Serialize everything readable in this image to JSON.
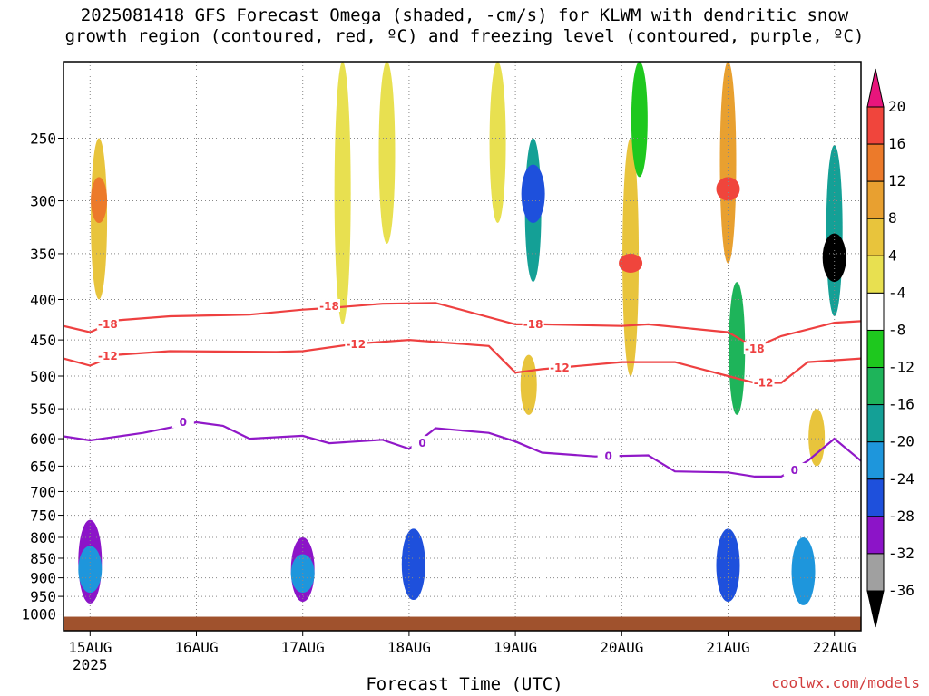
{
  "title": {
    "line1": "2025081418 GFS Forecast Omega (shaded, -cm/s) for KLWM with dendritic snow",
    "line2": "growth region (contoured, red, ºC) and freezing level (contoured, purple, ºC)"
  },
  "credit": "coolwx.com/models",
  "chart_data": {
    "type": "heatmap",
    "xlabel": "Forecast Time (UTC)",
    "ylabel": "",
    "x_unit": "hours since 2025-08-14 18Z",
    "xlim": [
      0,
      180
    ],
    "ylim": [
      1050,
      200
    ],
    "y_scale": "log",
    "x_ticks": [
      {
        "hour": 6,
        "label": "15AUG",
        "sublabel": "2025"
      },
      {
        "hour": 30,
        "label": "16AUG"
      },
      {
        "hour": 54,
        "label": "17AUG"
      },
      {
        "hour": 78,
        "label": "18AUG"
      },
      {
        "hour": 102,
        "label": "19AUG"
      },
      {
        "hour": 126,
        "label": "20AUG"
      },
      {
        "hour": 150,
        "label": "21AUG"
      },
      {
        "hour": 174,
        "label": "22AUG"
      }
    ],
    "y_ticks": [
      250,
      300,
      350,
      400,
      450,
      500,
      550,
      600,
      650,
      700,
      750,
      800,
      850,
      900,
      950,
      1000
    ],
    "grid": "dotted at each y tick and x tick",
    "colorbar": {
      "levels": [
        20,
        16,
        12,
        8,
        4,
        -4,
        -8,
        -12,
        -16,
        -20,
        -24,
        -28,
        -32,
        -36
      ],
      "colors": [
        "#e8157c",
        "#f0453c",
        "#ec7a2a",
        "#e8a030",
        "#e8c43c",
        "#e8e050",
        "#ffffff",
        "#1ec81e",
        "#1eb45a",
        "#14a096",
        "#1e96dc",
        "#1e50dc",
        "#8c14c8",
        "#a0a0a0",
        "#000000"
      ]
    },
    "series": [
      {
        "name": "-18",
        "color": "#ee4040",
        "points": [
          [
            0,
            432
          ],
          [
            6,
            440
          ],
          [
            12,
            425
          ],
          [
            24,
            420
          ],
          [
            42,
            418
          ],
          [
            54,
            412
          ],
          [
            60,
            410
          ],
          [
            72,
            405
          ],
          [
            84,
            404
          ],
          [
            102,
            430
          ],
          [
            108,
            430
          ],
          [
            126,
            432
          ],
          [
            132,
            430
          ],
          [
            150,
            440
          ],
          [
            156,
            460
          ],
          [
            162,
            445
          ],
          [
            174,
            428
          ],
          [
            180,
            426
          ]
        ]
      },
      {
        "name": "-12",
        "color": "#ee4040",
        "points": [
          [
            0,
            475
          ],
          [
            6,
            485
          ],
          [
            12,
            470
          ],
          [
            24,
            465
          ],
          [
            48,
            466
          ],
          [
            54,
            465
          ],
          [
            66,
            455
          ],
          [
            78,
            450
          ],
          [
            96,
            458
          ],
          [
            102,
            495
          ],
          [
            108,
            490
          ],
          [
            126,
            480
          ],
          [
            138,
            480
          ],
          [
            150,
            500
          ],
          [
            156,
            510
          ],
          [
            162,
            510
          ],
          [
            168,
            480
          ],
          [
            180,
            475
          ]
        ]
      },
      {
        "name": "0",
        "color": "#9018c8",
        "points": [
          [
            0,
            596
          ],
          [
            6,
            603
          ],
          [
            18,
            590
          ],
          [
            30,
            572
          ],
          [
            36,
            578
          ],
          [
            42,
            600
          ],
          [
            54,
            595
          ],
          [
            60,
            608
          ],
          [
            72,
            602
          ],
          [
            78,
            618
          ],
          [
            84,
            582
          ],
          [
            96,
            590
          ],
          [
            102,
            605
          ],
          [
            108,
            625
          ],
          [
            120,
            632
          ],
          [
            132,
            630
          ],
          [
            138,
            660
          ],
          [
            150,
            662
          ],
          [
            156,
            670
          ],
          [
            162,
            670
          ],
          [
            168,
            640
          ],
          [
            174,
            600
          ],
          [
            180,
            640
          ]
        ]
      }
    ],
    "contour_labels": [
      {
        "text": "-18",
        "series": "-18",
        "hour": 10,
        "p": 430
      },
      {
        "text": "-18",
        "series": "-18",
        "hour": 60,
        "p": 408
      },
      {
        "text": "-18",
        "series": "-18",
        "hour": 106,
        "p": 430
      },
      {
        "text": "-18",
        "series": "-18",
        "hour": 156,
        "p": 462
      },
      {
        "text": "-12",
        "series": "-12",
        "hour": 10,
        "p": 472
      },
      {
        "text": "-12",
        "series": "-12",
        "hour": 66,
        "p": 456
      },
      {
        "text": "-12",
        "series": "-12",
        "hour": 112,
        "p": 488
      },
      {
        "text": "-12",
        "series": "-12",
        "hour": 158,
        "p": 510
      },
      {
        "text": "0",
        "series": "0",
        "hour": 27,
        "p": 572
      },
      {
        "text": "0",
        "series": "0",
        "hour": 81,
        "p": 608
      },
      {
        "text": "0",
        "series": "0",
        "hour": 123,
        "p": 632
      },
      {
        "text": "0",
        "series": "0",
        "hour": 165,
        "p": 658
      }
    ],
    "omega_cells": [
      {
        "hour": 6,
        "p_top": 760,
        "p_bottom": 970,
        "value": -28
      },
      {
        "hour": 6,
        "p_top": 820,
        "p_bottom": 940,
        "value": -20
      },
      {
        "hour": 54,
        "p_top": 800,
        "p_bottom": 965,
        "value": -28
      },
      {
        "hour": 54,
        "p_top": 840,
        "p_bottom": 940,
        "value": -20
      },
      {
        "hour": 79,
        "p_top": 780,
        "p_bottom": 960,
        "value": -24
      },
      {
        "hour": 150,
        "p_top": 780,
        "p_bottom": 965,
        "value": -24
      },
      {
        "hour": 167,
        "p_top": 800,
        "p_bottom": 975,
        "value": -20
      },
      {
        "hour": 174,
        "p_top": 255,
        "p_bottom": 420,
        "value": -16
      },
      {
        "hour": 174,
        "p_top": 330,
        "p_bottom": 380,
        "value": -36
      },
      {
        "hour": 106,
        "p_top": 250,
        "p_bottom": 380,
        "value": -16
      },
      {
        "hour": 106,
        "p_top": 270,
        "p_bottom": 320,
        "value": -24
      },
      {
        "hour": 8,
        "p_top": 250,
        "p_bottom": 400,
        "value": 8
      },
      {
        "hour": 8,
        "p_top": 280,
        "p_bottom": 320,
        "value": 16
      },
      {
        "hour": 128,
        "p_top": 250,
        "p_bottom": 500,
        "value": 8
      },
      {
        "hour": 128,
        "p_top": 350,
        "p_bottom": 370,
        "value": 20
      },
      {
        "hour": 150,
        "p_top": 200,
        "p_bottom": 360,
        "value": 12
      },
      {
        "hour": 150,
        "p_top": 280,
        "p_bottom": 300,
        "value": 20
      },
      {
        "hour": 98,
        "p_top": 200,
        "p_bottom": 320,
        "value": 4
      },
      {
        "hour": 63,
        "p_top": 200,
        "p_bottom": 430,
        "value": 4
      },
      {
        "hour": 105,
        "p_top": 470,
        "p_bottom": 560,
        "value": 8
      },
      {
        "hour": 170,
        "p_top": 550,
        "p_bottom": 650,
        "value": 8
      },
      {
        "hour": 130,
        "p_top": 200,
        "p_bottom": 280,
        "value": -8
      },
      {
        "hour": 152,
        "p_top": 380,
        "p_bottom": 560,
        "value": -12
      },
      {
        "hour": 73,
        "p_top": 200,
        "p_bottom": 340,
        "value": 4
      }
    ]
  },
  "colors": {
    "terrain": "#a0522d",
    "grid": "#888888",
    "axis": "#000000"
  }
}
